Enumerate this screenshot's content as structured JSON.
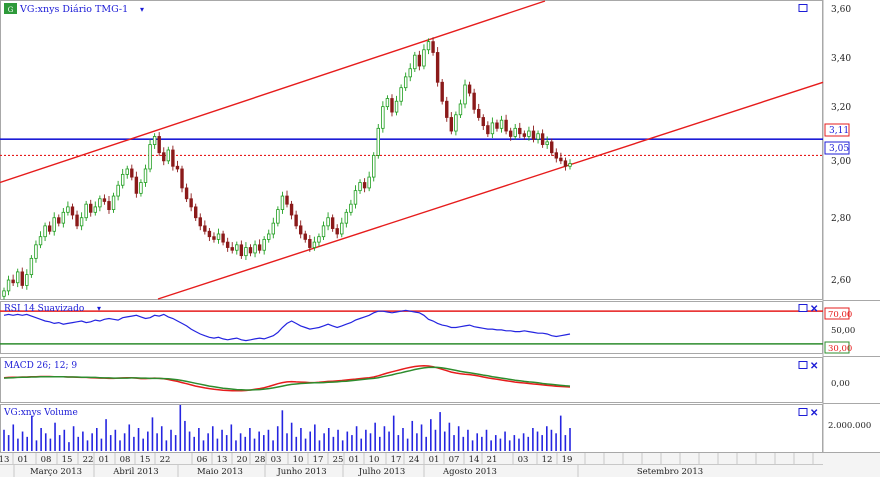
{
  "panels": {
    "price": {
      "title": "VG:xnys Diário TMG-1",
      "axis_ticks": [
        "3,60",
        "3,40",
        "3,20",
        "3,00",
        "2,80",
        "2,60"
      ],
      "badge_blue": "3,11",
      "badge_red": "3,05"
    },
    "rsi": {
      "title": "RSI 14 Suavizado",
      "axis_ticks": [
        "70,00",
        "50,00",
        "30,00"
      ]
    },
    "macd": {
      "title": "MACD 26; 12; 9",
      "axis_ticks": [
        "0,00"
      ]
    },
    "volume": {
      "title": "VG:xnys Volume",
      "axis_ticks": [
        "2.000.000"
      ]
    }
  },
  "xaxis": {
    "days": [
      "13",
      "01",
      "08",
      "15",
      "22",
      "01",
      "08",
      "15",
      "22",
      "06",
      "13",
      "20",
      "28",
      "03",
      "10",
      "17",
      "25",
      "01",
      "10",
      "17",
      "24",
      "01",
      "07",
      "14",
      "21",
      "03",
      "12",
      "19"
    ],
    "months": [
      "Março 2013",
      "Abril 2013",
      "Maio 2013",
      "Junho 2013",
      "Julho 2013",
      "Agosto 2013",
      "Setembro 2013"
    ]
  },
  "colors": {
    "up": "#1f9e1f",
    "down": "#8b1a1a",
    "channel": "#e61c1c",
    "hline_blue": "#1c1cd6",
    "rsi_line": "#2424e0",
    "macd": "#2d8c2d",
    "signal": "#e61c1c",
    "volume": "#2424e0"
  },
  "chart_data": [
    {
      "type": "candlestick",
      "title": "VG:xnys Diário TMG-1",
      "ylim": [
        2.52,
        3.62
      ],
      "horizontal_lines": [
        3.11,
        3.05
      ],
      "closes": [
        2.55,
        2.59,
        2.58,
        2.62,
        2.57,
        2.61,
        2.67,
        2.72,
        2.75,
        2.79,
        2.77,
        2.82,
        2.8,
        2.84,
        2.86,
        2.83,
        2.79,
        2.82,
        2.87,
        2.84,
        2.86,
        2.89,
        2.88,
        2.85,
        2.9,
        2.94,
        2.98,
        3.0,
        2.97,
        2.91,
        2.95,
        3.0,
        3.09,
        3.12,
        3.06,
        3.03,
        3.07,
        3.01,
        3.0,
        2.93,
        2.89,
        2.86,
        2.82,
        2.79,
        2.77,
        2.75,
        2.74,
        2.76,
        2.73,
        2.71,
        2.7,
        2.72,
        2.68,
        2.71,
        2.69,
        2.72,
        2.7,
        2.74,
        2.76,
        2.8,
        2.85,
        2.9,
        2.87,
        2.83,
        2.79,
        2.76,
        2.74,
        2.71,
        2.73,
        2.75,
        2.79,
        2.82,
        2.78,
        2.76,
        2.8,
        2.84,
        2.87,
        2.92,
        2.95,
        2.93,
        2.97,
        3.05,
        3.15,
        3.23,
        3.26,
        3.21,
        3.25,
        3.3,
        3.34,
        3.37,
        3.42,
        3.38,
        3.44,
        3.47,
        3.43,
        3.32,
        3.25,
        3.19,
        3.14,
        3.2,
        3.24,
        3.31,
        3.28,
        3.22,
        3.19,
        3.16,
        3.13,
        3.17,
        3.15,
        3.18,
        3.14,
        3.12,
        3.15,
        3.13,
        3.12,
        3.14,
        3.11,
        3.13,
        3.09,
        3.1,
        3.06,
        3.04,
        3.03,
        3.01,
        3.02
      ]
    },
    {
      "type": "line",
      "title": "RSI 14 Suavizado",
      "ylim": [
        20,
        80
      ],
      "levels": [
        70,
        30
      ],
      "values": [
        65,
        66,
        65,
        66,
        65,
        66,
        64,
        62,
        60,
        58,
        57,
        55,
        56,
        54,
        55,
        56,
        57,
        58,
        56,
        57,
        59,
        58,
        60,
        61,
        60,
        59,
        62,
        63,
        64,
        65,
        63,
        61,
        62,
        65,
        64,
        66,
        63,
        61,
        58,
        55,
        52,
        48,
        45,
        42,
        40,
        38,
        37,
        38,
        36,
        35,
        36,
        37,
        35,
        34,
        35,
        36,
        37,
        36,
        38,
        40,
        44,
        50,
        55,
        58,
        55,
        52,
        50,
        48,
        49,
        50,
        52,
        54,
        52,
        50,
        52,
        54,
        56,
        59,
        61,
        63,
        65,
        68,
        70,
        70,
        69,
        68,
        69,
        70,
        71,
        70,
        69,
        68,
        65,
        60,
        58,
        55,
        53,
        52,
        50,
        50,
        51,
        52,
        53,
        51,
        50,
        49,
        48,
        48,
        47,
        47,
        46,
        46,
        45,
        45,
        46,
        45,
        44,
        43,
        43,
        42,
        40,
        39,
        40,
        41,
        42
      ]
    },
    {
      "type": "line",
      "title": "MACD 26; 12; 9",
      "ylim": [
        -0.08,
        0.1
      ],
      "series": [
        {
          "values": [
            0.02,
            0.021,
            0.022,
            0.022,
            0.023,
            0.023,
            0.024,
            0.024,
            0.025,
            0.025,
            0.025,
            0.024,
            0.024,
            0.024,
            0.023,
            0.023,
            0.022,
            0.021,
            0.021,
            0.02,
            0.019,
            0.018,
            0.018,
            0.017,
            0.017,
            0.018,
            0.019,
            0.02,
            0.02,
            0.018,
            0.016,
            0.016,
            0.017,
            0.018,
            0.017,
            0.015,
            0.012,
            0.008,
            0.004,
            -0.001,
            -0.006,
            -0.011,
            -0.016,
            -0.02,
            -0.024,
            -0.027,
            -0.03,
            -0.032,
            -0.034,
            -0.035,
            -0.036,
            -0.036,
            -0.036,
            -0.035,
            -0.033,
            -0.03,
            -0.027,
            -0.023,
            -0.018,
            -0.012,
            -0.006,
            -0.001,
            0.002,
            0.003,
            0.002,
            0.001,
            0.0,
            -0.001,
            -0.001,
            0.0,
            0.002,
            0.004,
            0.005,
            0.006,
            0.008,
            0.01,
            0.012,
            0.014,
            0.016,
            0.018,
            0.02,
            0.023,
            0.028,
            0.034,
            0.04,
            0.045,
            0.05,
            0.055,
            0.06,
            0.064,
            0.068,
            0.07,
            0.071,
            0.07,
            0.067,
            0.062,
            0.056,
            0.05,
            0.044,
            0.04,
            0.037,
            0.035,
            0.033,
            0.03,
            0.027,
            0.023,
            0.019,
            0.016,
            0.013,
            0.01,
            0.007,
            0.004,
            0.001,
            -0.001,
            -0.003,
            -0.005,
            -0.007,
            -0.009,
            -0.011,
            -0.013,
            -0.015,
            -0.017,
            -0.018,
            -0.019,
            -0.02
          ]
        },
        {
          "values": [
            0.018,
            0.019,
            0.02,
            0.021,
            0.022,
            0.022,
            0.023,
            0.023,
            0.024,
            0.024,
            0.024,
            0.024,
            0.024,
            0.024,
            0.023,
            0.023,
            0.023,
            0.022,
            0.022,
            0.021,
            0.021,
            0.02,
            0.019,
            0.019,
            0.018,
            0.018,
            0.018,
            0.018,
            0.019,
            0.019,
            0.018,
            0.018,
            0.017,
            0.017,
            0.017,
            0.016,
            0.015,
            0.013,
            0.011,
            0.008,
            0.004,
            0.0,
            -0.004,
            -0.008,
            -0.012,
            -0.016,
            -0.019,
            -0.022,
            -0.025,
            -0.027,
            -0.029,
            -0.031,
            -0.032,
            -0.033,
            -0.033,
            -0.032,
            -0.031,
            -0.029,
            -0.027,
            -0.024,
            -0.02,
            -0.016,
            -0.012,
            -0.009,
            -0.007,
            -0.005,
            -0.004,
            -0.003,
            -0.002,
            -0.002,
            -0.001,
            0.0,
            0.001,
            0.002,
            0.004,
            0.005,
            0.007,
            0.009,
            0.011,
            0.013,
            0.015,
            0.017,
            0.02,
            0.024,
            0.028,
            0.032,
            0.037,
            0.041,
            0.046,
            0.05,
            0.055,
            0.059,
            0.062,
            0.064,
            0.065,
            0.064,
            0.062,
            0.059,
            0.055,
            0.051,
            0.047,
            0.044,
            0.041,
            0.038,
            0.035,
            0.031,
            0.028,
            0.024,
            0.021,
            0.018,
            0.015,
            0.012,
            0.009,
            0.007,
            0.004,
            0.002,
            0.0,
            -0.002,
            -0.005,
            -0.007,
            -0.009,
            -0.011,
            -0.013,
            -0.015,
            -0.016
          ]
        }
      ]
    },
    {
      "type": "bar",
      "title": "VG:xnys Volume",
      "ylim": [
        0,
        2600000
      ],
      "values": [
        1200000,
        900000,
        1500000,
        700000,
        1100000,
        800000,
        2000000,
        600000,
        1300000,
        1000000,
        700000,
        1600000,
        900000,
        1200000,
        500000,
        1400000,
        800000,
        1100000,
        600000,
        1000000,
        1300000,
        700000,
        1800000,
        900000,
        1200000,
        600000,
        1000000,
        1500000,
        800000,
        1300000,
        700000,
        1100000,
        1900000,
        1000000,
        1400000,
        600000,
        1200000,
        900000,
        2600000,
        1700000,
        1100000,
        800000,
        1300000,
        600000,
        1000000,
        1400000,
        700000,
        1200000,
        900000,
        1500000,
        600000,
        1000000,
        800000,
        1300000,
        700000,
        1100000,
        900000,
        1200000,
        600000,
        1400000,
        2300000,
        1000000,
        1600000,
        800000,
        1300000,
        700000,
        1100000,
        1500000,
        600000,
        1000000,
        1300000,
        800000,
        1200000,
        600000,
        1100000,
        900000,
        1400000,
        700000,
        1200000,
        1000000,
        1600000,
        800000,
        1400000,
        1100000,
        2000000,
        900000,
        1300000,
        700000,
        1700000,
        1000000,
        1500000,
        800000,
        1800000,
        1200000,
        2200000,
        1100000,
        1600000,
        900000,
        1400000,
        800000,
        1200000,
        600000,
        1000000,
        800000,
        1200000,
        600000,
        900000,
        700000,
        1100000,
        600000,
        900000,
        700000,
        1000000,
        800000,
        1300000,
        1100000,
        900000,
        1400000,
        1200000,
        1000000,
        2000000,
        900000,
        1300000
      ]
    }
  ]
}
